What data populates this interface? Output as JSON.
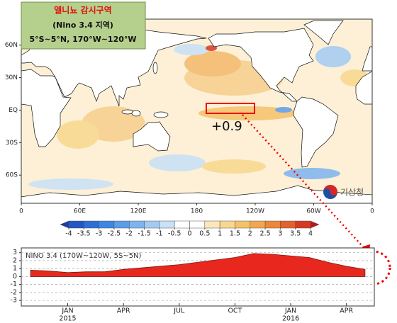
{
  "map": {
    "title_box": [
      "엘니뇨 감시구역",
      "(Nino 3.4 지역)",
      "5°S~5°N, 170°W~120°W"
    ],
    "annotation": "+0.9",
    "logo": "기상청",
    "xlim": [
      0,
      360
    ],
    "xticks": [
      0,
      {
        "value": 60,
        "label": "60E"
      },
      {
        "value": 120,
        "label": "120E"
      },
      180,
      {
        "value": 240,
        "label": "120W"
      },
      {
        "value": 300,
        "label": "60W"
      },
      {
        "value": 360,
        "label": "0"
      }
    ],
    "ylim": [
      -86,
      84
    ],
    "yticks": [
      {
        "value": 60,
        "label": "60N"
      },
      {
        "value": 30,
        "label": "30N"
      },
      {
        "value": 0,
        "label": "EQ"
      },
      {
        "value": -30,
        "label": "30S"
      },
      {
        "value": -60,
        "label": "60S"
      }
    ]
  },
  "colorbar": {
    "ticks": [
      -4,
      -3.5,
      -3,
      -2.5,
      -2,
      -1.5,
      -1,
      -0.5,
      0,
      0.5,
      1,
      1.5,
      2,
      2.5,
      3,
      3.5,
      4
    ],
    "colors": [
      "#1a3fa0",
      "#2355c4",
      "#2e6fd6",
      "#3d86e3",
      "#5a9de8",
      "#7cb4ee",
      "#a2cbf3",
      "#c8e0f8",
      "#ffffff",
      "#ffffff",
      "#fbe7b8",
      "#f9d88e",
      "#f5c26a",
      "#f2a64d",
      "#ed853a",
      "#e4612b",
      "#d63a20",
      "#b81a14"
    ]
  },
  "chart_data": {
    "type": "area",
    "title": "NINO 3.4 (170W~120W, 5S~5N)",
    "x": [
      "2014-11",
      "2014-12",
      "2015-01",
      "2015-02",
      "2015-03",
      "2015-04",
      "2015-05",
      "2015-06",
      "2015-07",
      "2015-08",
      "2015-09",
      "2015-10",
      "2015-11",
      "2015-12",
      "2016-01",
      "2016-02",
      "2016-03",
      "2016-04",
      "2016-05"
    ],
    "series": [
      {
        "color": "#e8281e",
        "values": [
          0.8,
          0.7,
          0.5,
          0.6,
          0.6,
          0.9,
          1.1,
          1.3,
          1.5,
          1.8,
          2.1,
          2.4,
          2.9,
          2.8,
          2.6,
          2.4,
          1.8,
          1.3,
          0.9
        ]
      }
    ],
    "xlim": [
      "2014-11",
      "2016-05"
    ],
    "xticks": [
      {
        "value": "2015-01",
        "label": "JAN"
      },
      {
        "value": "2015-04",
        "label": "APR"
      },
      {
        "value": "2015-07",
        "label": "JUL"
      },
      {
        "value": "2015-10",
        "label": "OCT"
      },
      {
        "value": "2016-01",
        "label": "JAN"
      },
      {
        "value": "2016-04",
        "label": "APR"
      }
    ],
    "xyears": [
      {
        "value": "2015-01",
        "label": "2015"
      },
      {
        "value": "2016-01",
        "label": "2016"
      }
    ],
    "ylim": [
      -3.7,
      3.6
    ],
    "yticks": [
      -3,
      -2,
      -1,
      0,
      1,
      2,
      3
    ],
    "grid": true
  }
}
